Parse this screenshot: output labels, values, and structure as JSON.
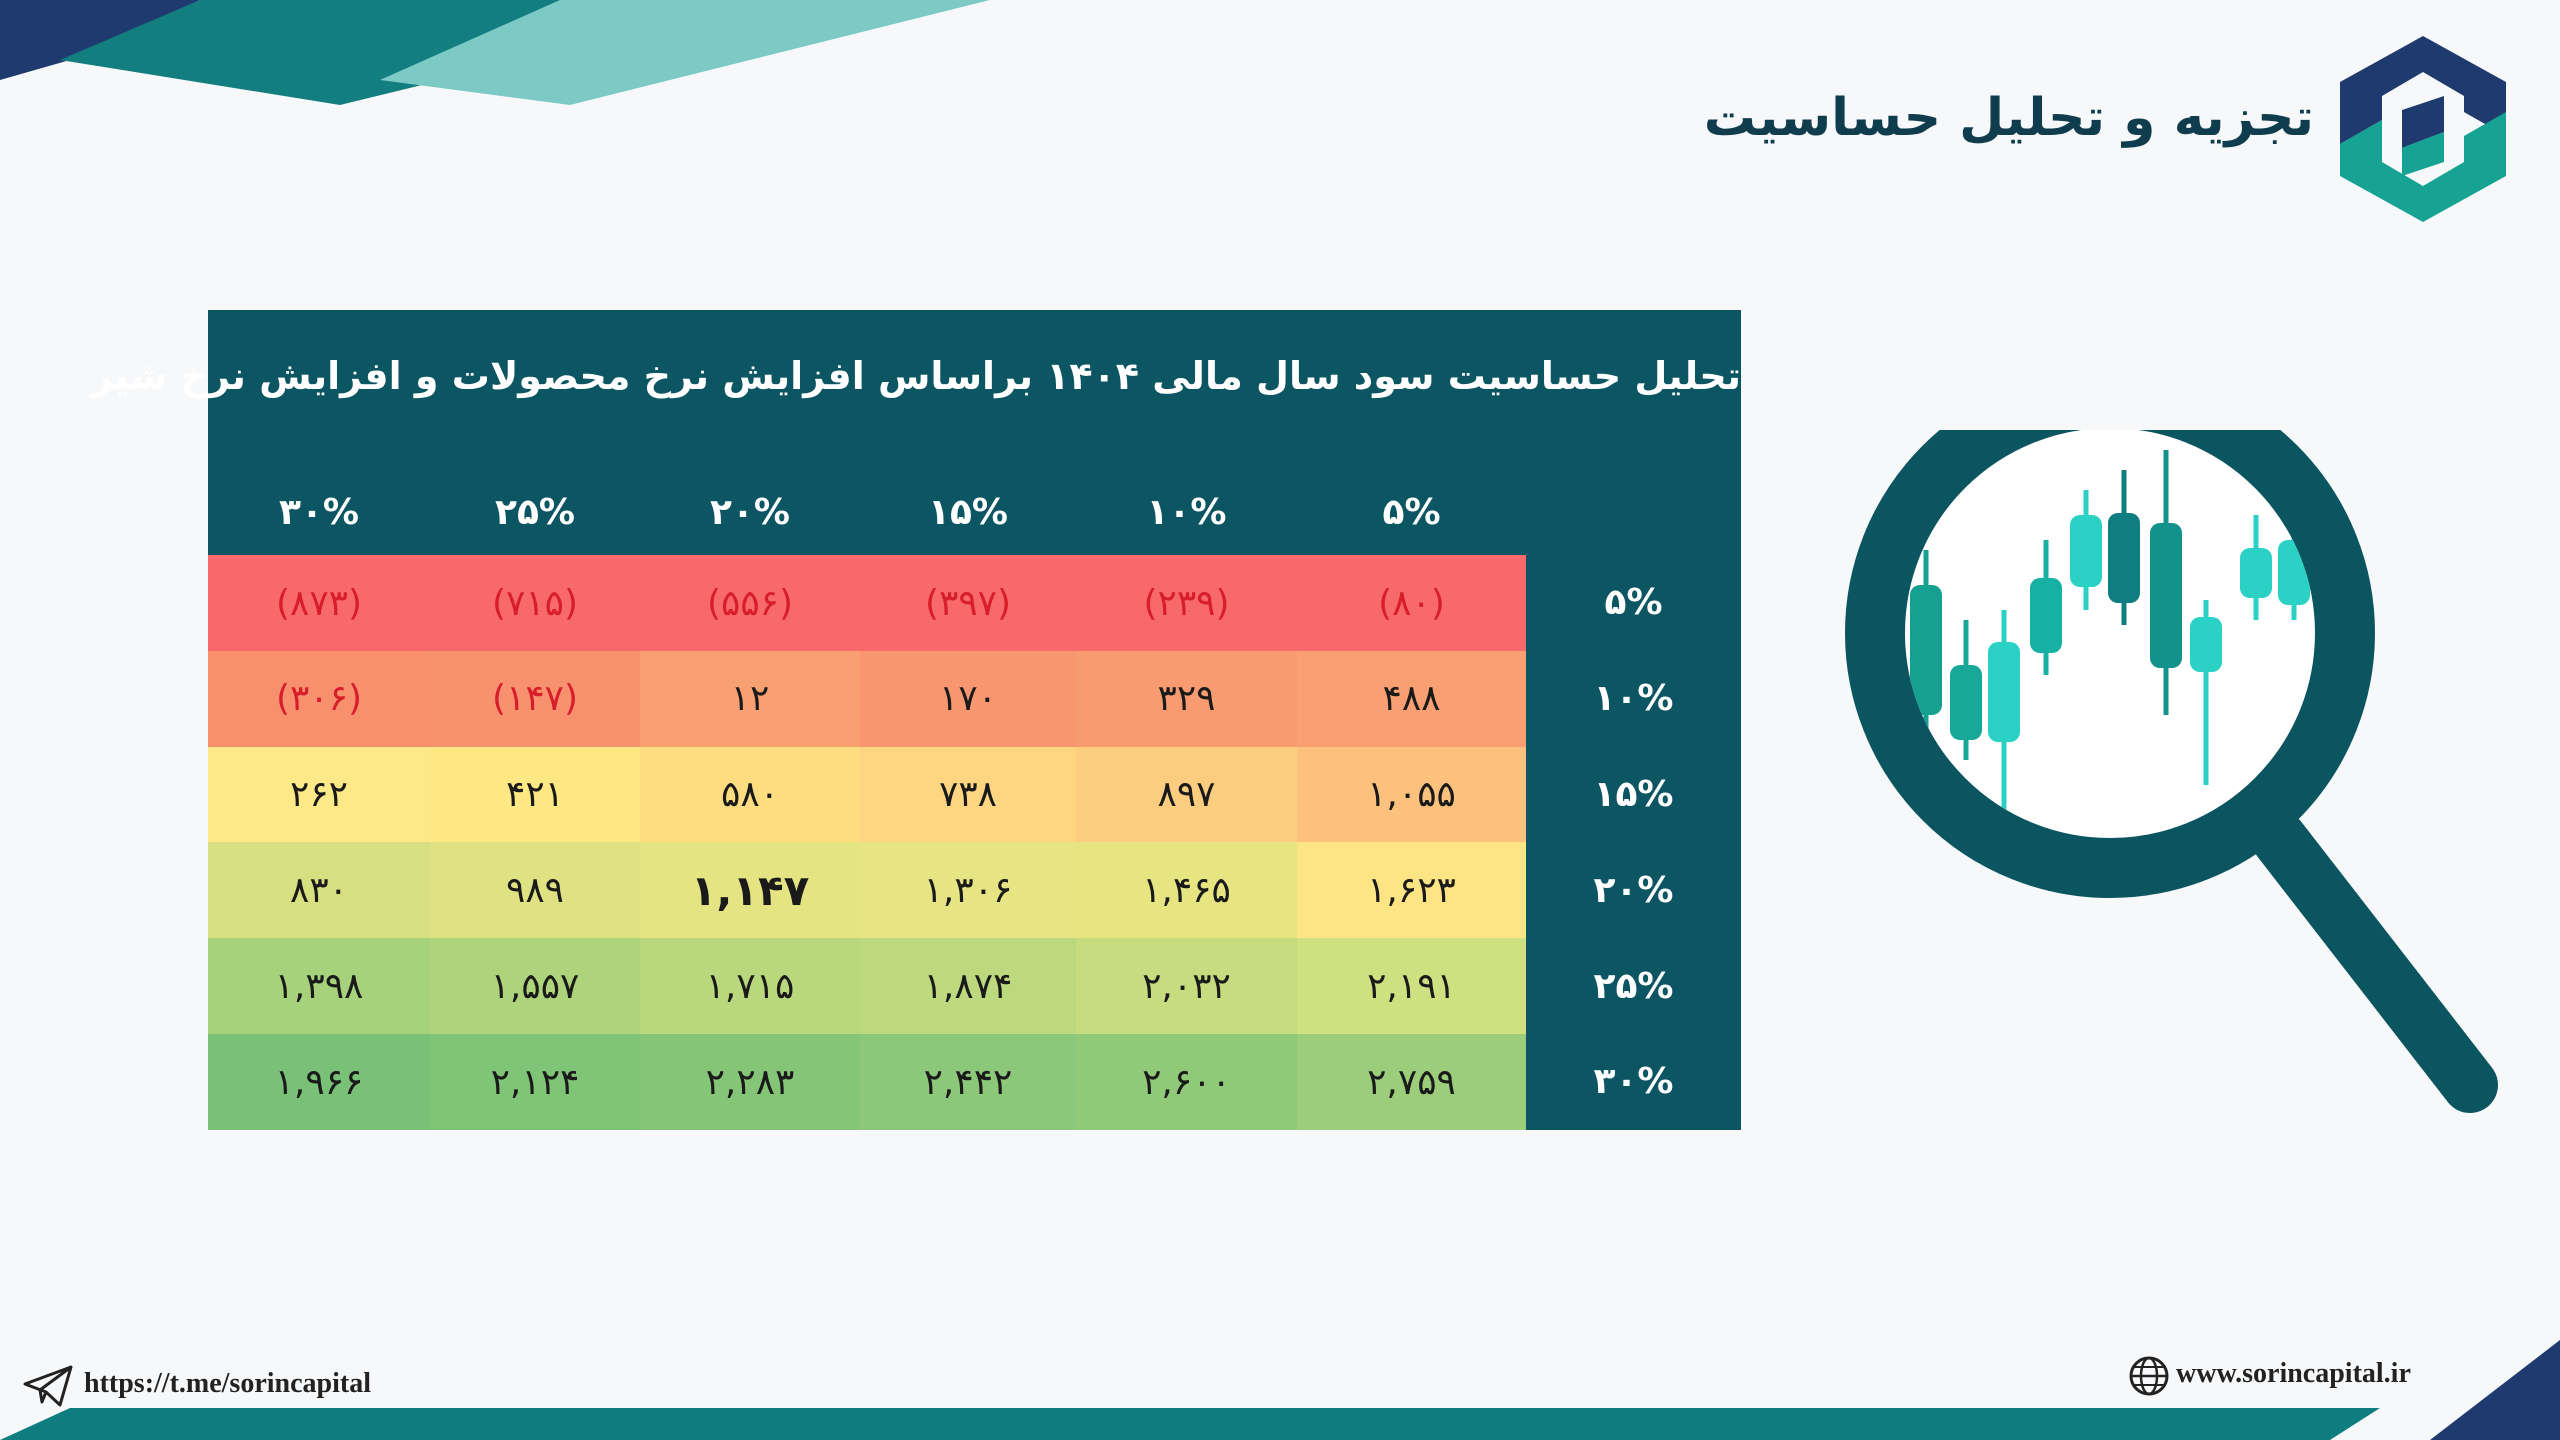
{
  "header": {
    "title": "تجزیه و تحلیل حساسیت"
  },
  "table": {
    "title": "تحلیل حساسیت سود سال مالی ۱۴۰۴ براساس افزایش نرخ محصولات و افزایش نرخ شیر",
    "column_headers": [
      "۵%",
      "۱۰%",
      "۱۵%",
      "۲۰%",
      "۲۵%",
      "۳۰%"
    ],
    "row_headers": [
      "۵%",
      "۱۰%",
      "۱۵%",
      "۲۰%",
      "۲۵%",
      "۳۰%"
    ],
    "rows": [
      [
        "(۸۰)",
        "(۲۳۹)",
        "(۳۹۷)",
        "(۵۵۶)",
        "(۷۱۵)",
        "(۸۷۳)"
      ],
      [
        "۴۸۸",
        "۳۲۹",
        "۱۷۰",
        "۱۲",
        "(۱۴۷)",
        "(۳۰۶)"
      ],
      [
        "۱,۰۵۵",
        "۸۹۷",
        "۷۳۸",
        "۵۸۰",
        "۴۲۱",
        "۲۶۲"
      ],
      [
        "۱,۶۲۳",
        "۱,۴۶۵",
        "۱,۳۰۶",
        "۱,۱۴۷",
        "۹۸۹",
        "۸۳۰"
      ],
      [
        "۲,۱۹۱",
        "۲,۰۳۲",
        "۱,۸۷۴",
        "۱,۷۱۵",
        "۱,۵۵۷",
        "۱,۳۹۸"
      ],
      [
        "۲,۷۵۹",
        "۲,۶۰۰",
        "۲,۴۴۲",
        "۲,۲۸۳",
        "۲,۱۲۴",
        "۱,۹۶۶"
      ]
    ],
    "cell_colors": [
      [
        "#f8696b",
        "#f8696b",
        "#f8696b",
        "#f8696b",
        "#f8696b",
        "#f8696b"
      ],
      [
        "#f9a072",
        "#f99b71",
        "#f8976f",
        "#f9a072",
        "#f8926e",
        "#f8906d"
      ],
      [
        "#fcc17c",
        "#fdcd7f",
        "#fed581",
        "#fedd81",
        "#fde884",
        "#fde987"
      ],
      [
        "#fde585",
        "#e7e482",
        "#e6e483",
        "#e5e483",
        "#dfe282",
        "#d7df81"
      ],
      [
        "#cee07f",
        "#c6dc7e",
        "#bcd97d",
        "#b9d87d",
        "#aed47b",
        "#a6d27b"
      ],
      [
        "#9bcd7b",
        "#90ca79",
        "#8cc879",
        "#84c578",
        "#80c477",
        "#78c177"
      ]
    ],
    "emphasized_cell": "۱,۱۴۷"
  },
  "footer": {
    "telegram_link": "https://t.me/sorincapital",
    "website": "www.sorincapital.ir"
  },
  "colors": {
    "panel": "#0c5562",
    "brand_dark": "#1e3a6e",
    "brand_teal": "#17a394",
    "negative_text": "#d81e2a"
  },
  "icons": {
    "logo": "sorin-capital-logo",
    "illustration": "magnifier-candlestick-icon",
    "telegram": "telegram-icon",
    "globe": "globe-icon"
  }
}
